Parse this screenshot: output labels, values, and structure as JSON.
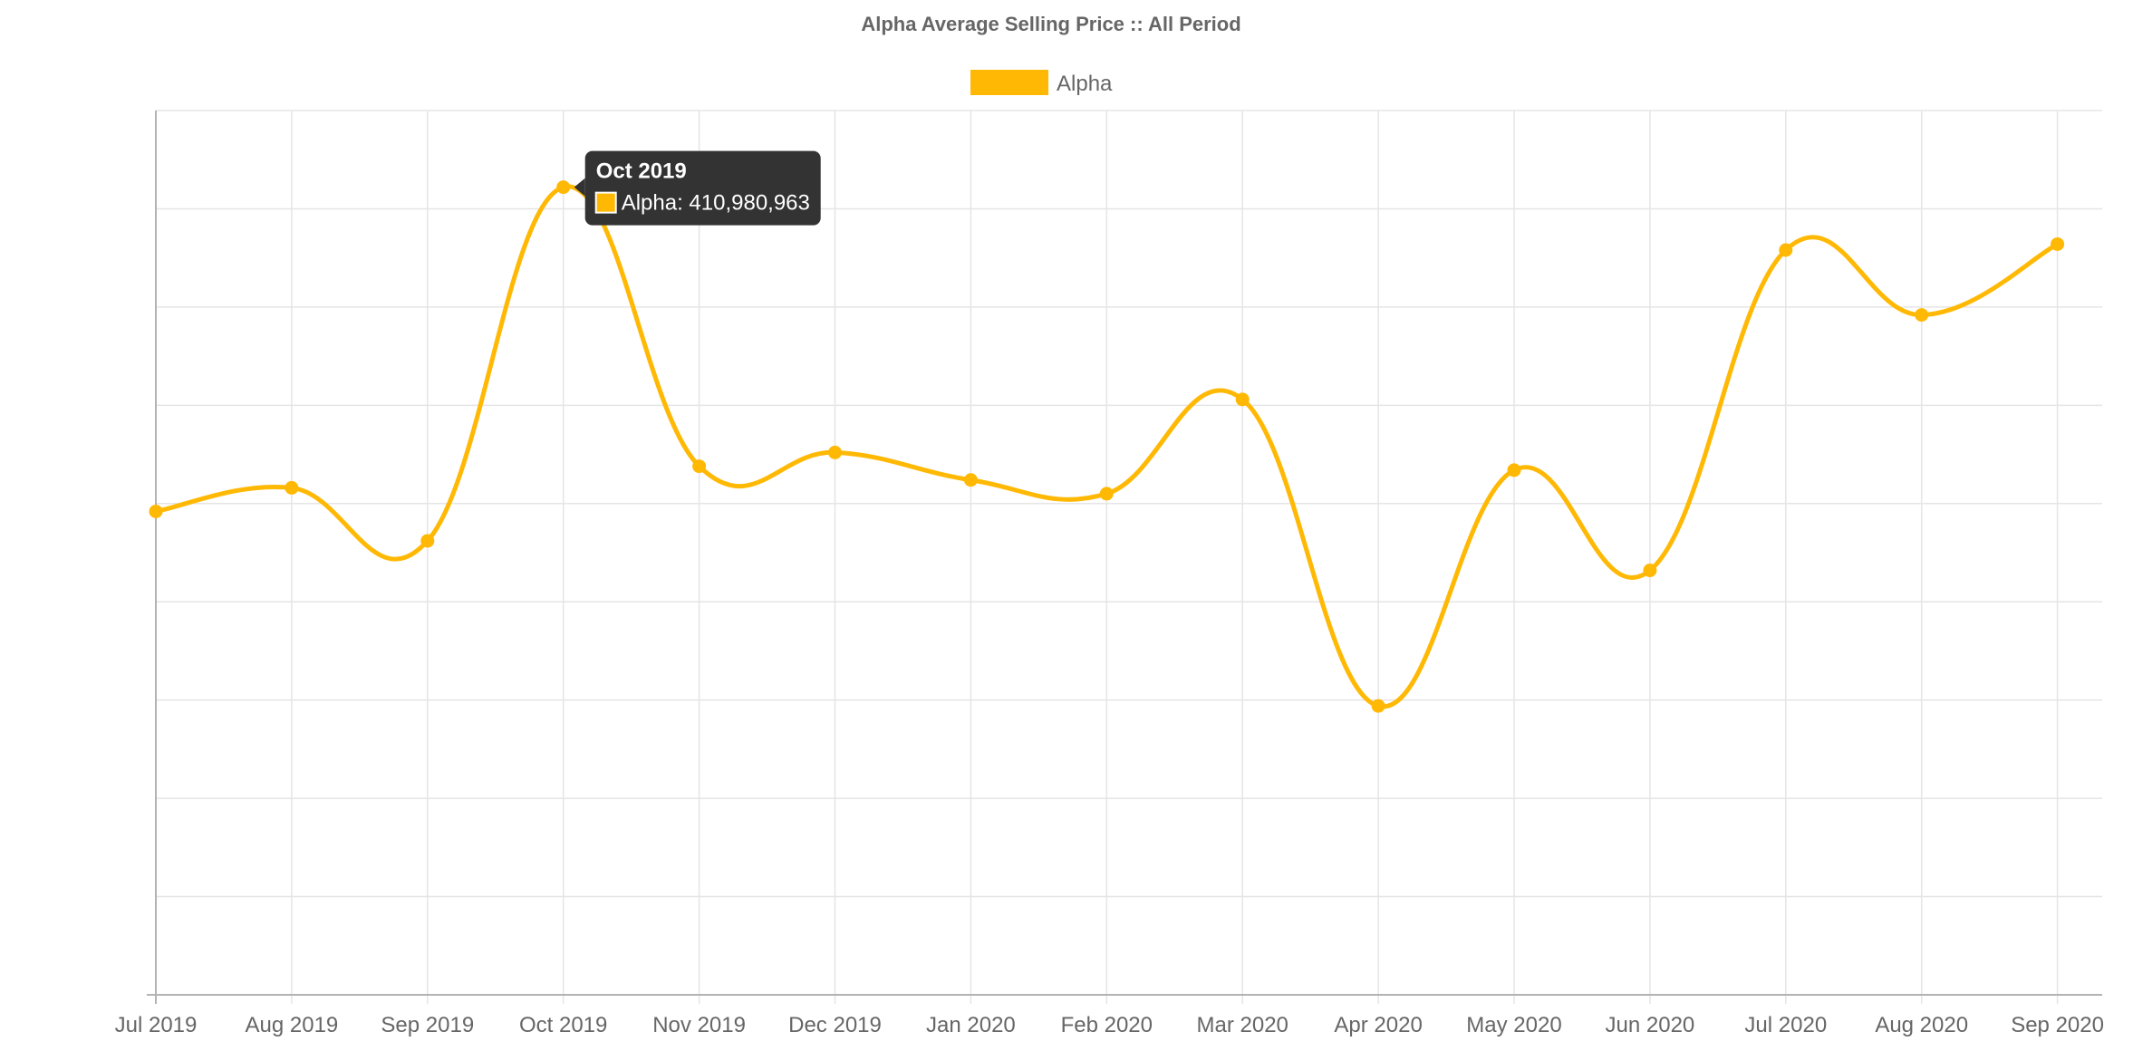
{
  "chart_data": {
    "type": "line",
    "title": "Alpha Average Selling Price :: All Period",
    "xlabel": "",
    "ylabel": "",
    "categories": [
      "Jul 2019",
      "Aug 2019",
      "Sep 2019",
      "Oct 2019",
      "Nov 2019",
      "Dec 2019",
      "Jan 2020",
      "Feb 2020",
      "Mar 2020",
      "Apr 2020",
      "May 2020",
      "Jun 2020",
      "Jul 2020",
      "Aug 2020",
      "Sep 2020"
    ],
    "series": [
      {
        "name": "Alpha",
        "color": "#FFB905",
        "values": [
          246000000,
          258000000,
          231000000,
          410980963,
          269000000,
          276000000,
          262000000,
          255000000,
          303000000,
          147000000,
          267000000,
          216000000,
          379000000,
          346000000,
          382000000
        ]
      }
    ],
    "ylim": [
      0,
      450000000
    ],
    "grid": true,
    "legend": "top-center",
    "tooltip": {
      "title": "Oct 2019",
      "label": "Alpha: 410,980,963",
      "category_index": 3
    }
  },
  "colors": {
    "series": "#FFB905",
    "grid": "#e5e5e5",
    "axis": "#b3b3b3",
    "tooltip_bg": "#333333"
  }
}
